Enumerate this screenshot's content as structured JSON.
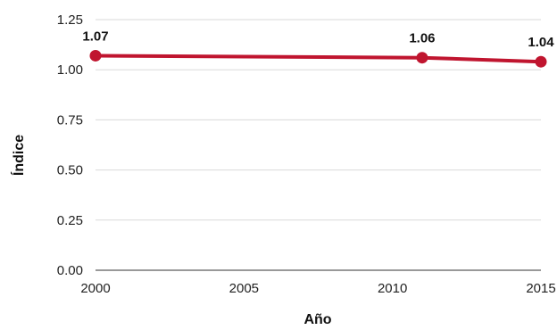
{
  "chart_data": {
    "type": "line",
    "title": "",
    "xlabel": "Año",
    "ylabel": "Índice",
    "x": [
      2000,
      2011,
      2015
    ],
    "x_ticks": [
      "2000",
      "2005",
      "2010",
      "2015"
    ],
    "y_ticks": [
      "0.00",
      "0.25",
      "0.50",
      "0.75",
      "1.00",
      "1.25"
    ],
    "xlim": [
      2000,
      2015
    ],
    "ylim": [
      0,
      1.25
    ],
    "grid": true,
    "series": [
      {
        "values": [
          1.07,
          1.06,
          1.04
        ],
        "labels": [
          "1.07",
          "1.06",
          "1.04"
        ],
        "color": "#c0152f"
      }
    ]
  }
}
